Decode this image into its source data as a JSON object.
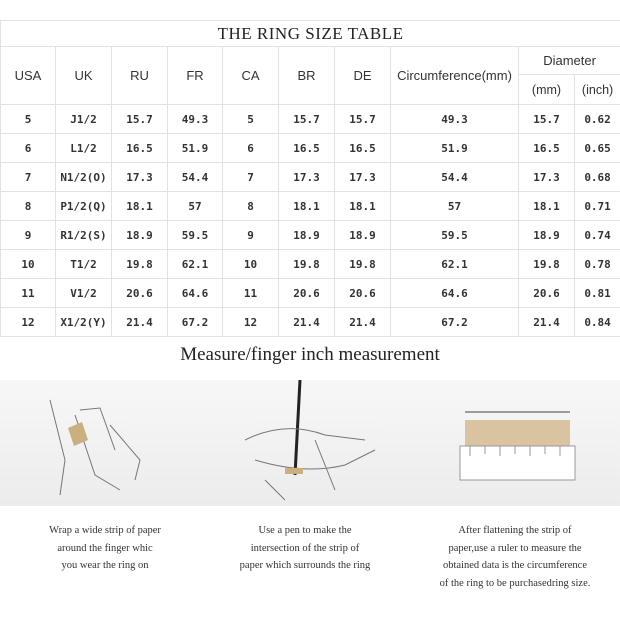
{
  "table": {
    "title": "THE RING SIZE TABLE",
    "headers": [
      "USA",
      "UK",
      "RU",
      "FR",
      "CA",
      "BR",
      "DE",
      "Circumference(mm)",
      "Diameter"
    ],
    "subheaders": [
      "(mm)",
      "(inch)"
    ],
    "rows": [
      [
        "5",
        "J1/2",
        "15.7",
        "49.3",
        "5",
        "15.7",
        "15.7",
        "49.3",
        "15.7",
        "0.62"
      ],
      [
        "6",
        "L1/2",
        "16.5",
        "51.9",
        "6",
        "16.5",
        "16.5",
        "51.9",
        "16.5",
        "0.65"
      ],
      [
        "7",
        "N1/2(O)",
        "17.3",
        "54.4",
        "7",
        "17.3",
        "17.3",
        "54.4",
        "17.3",
        "0.68"
      ],
      [
        "8",
        "P1/2(Q)",
        "18.1",
        "57",
        "8",
        "18.1",
        "18.1",
        "57",
        "18.1",
        "0.71"
      ],
      [
        "9",
        "R1/2(S)",
        "18.9",
        "59.5",
        "9",
        "18.9",
        "18.9",
        "59.5",
        "18.9",
        "0.74"
      ],
      [
        "10",
        "T1/2",
        "19.8",
        "62.1",
        "10",
        "19.8",
        "19.8",
        "62.1",
        "19.8",
        "0.78"
      ],
      [
        "11",
        "V1/2",
        "20.6",
        "64.6",
        "11",
        "20.6",
        "20.6",
        "64.6",
        "20.6",
        "0.81"
      ],
      [
        "12",
        "X1/2(Y)",
        "21.4",
        "67.2",
        "12",
        "21.4",
        "21.4",
        "67.2",
        "21.4",
        "0.84"
      ]
    ]
  },
  "measure": {
    "heading": "Measure/finger inch measurement",
    "steps": [
      [
        "Wrap a wide strip of paper",
        "around the finger whic",
        "you wear the ring on"
      ],
      [
        "Use a pen to make the",
        "intersection of the strip of",
        "paper which surrounds the ring"
      ],
      [
        "After flattening the strip of",
        "paper,use a ruler to measure the",
        "obtained data is the circumference",
        "of the ring to be purchasedring size."
      ]
    ]
  }
}
